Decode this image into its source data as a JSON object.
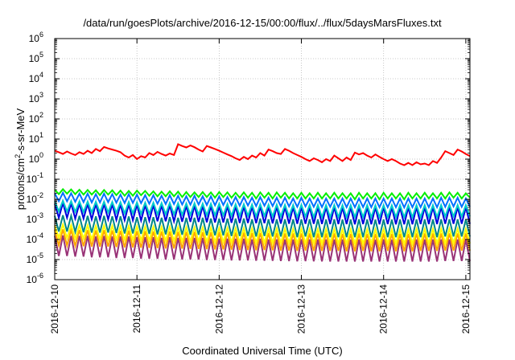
{
  "chart_data": {
    "type": "line",
    "title": "/data/run/goesPlots/archive/2016-12-15/00:00/flux/../flux/5daysMarsFluxes.txt",
    "xlabel": "Coordinated Universal Time (UTC)",
    "ylabel_parts": {
      "base": "protons/cm",
      "sup": "2",
      "rest": "-s-sr-MeV"
    },
    "x_ticks": [
      "2016-12-10",
      "2016-12-11",
      "2016-12-12",
      "2016-12-13",
      "2016-12-14",
      "2016-12-15"
    ],
    "x_range_days": [
      0,
      5.05
    ],
    "y_scale": "log",
    "y_ticks_exp": [
      -6,
      -5,
      -4,
      -3,
      -2,
      -1,
      0,
      1,
      2,
      3,
      4,
      5,
      6
    ],
    "ylim": [
      1e-06,
      1000000.0
    ],
    "grid": true,
    "x": [
      0,
      0.05,
      0.1,
      0.15,
      0.2,
      0.25,
      0.3,
      0.35,
      0.4,
      0.45,
      0.5,
      0.55,
      0.6,
      0.65,
      0.7,
      0.75,
      0.8,
      0.85,
      0.9,
      0.95,
      1.0,
      1.05,
      1.1,
      1.15,
      1.2,
      1.25,
      1.3,
      1.35,
      1.4,
      1.45,
      1.5,
      1.55,
      1.6,
      1.65,
      1.7,
      1.75,
      1.8,
      1.85,
      1.9,
      1.95,
      2.0,
      2.05,
      2.1,
      2.15,
      2.2,
      2.25,
      2.3,
      2.35,
      2.4,
      2.45,
      2.5,
      2.55,
      2.6,
      2.65,
      2.7,
      2.75,
      2.8,
      2.85,
      2.9,
      2.95,
      3.0,
      3.05,
      3.1,
      3.15,
      3.2,
      3.25,
      3.3,
      3.35,
      3.4,
      3.45,
      3.5,
      3.55,
      3.6,
      3.65,
      3.7,
      3.75,
      3.8,
      3.85,
      3.9,
      3.95,
      4.0,
      4.05,
      4.1,
      4.15,
      4.2,
      4.25,
      4.3,
      4.35,
      4.4,
      4.45,
      4.5,
      4.55,
      4.6,
      4.65,
      4.7,
      4.75,
      4.8,
      4.85,
      4.9,
      4.95,
      5.0,
      5.05
    ],
    "series": [
      {
        "color": "#ff0000",
        "values": [
          2.6,
          2.2,
          1.8,
          2.4,
          1.9,
          1.6,
          2.2,
          1.8,
          2.6,
          2.0,
          3.2,
          2.5,
          4.0,
          3.4,
          3.0,
          2.6,
          2.2,
          1.5,
          1.2,
          1.6,
          1.0,
          1.4,
          1.2,
          2.0,
          1.6,
          2.3,
          1.8,
          1.5,
          1.9,
          1.6,
          5.5,
          4.5,
          3.8,
          4.8,
          3.9,
          3.0,
          2.4,
          4.5,
          3.8,
          3.2,
          2.6,
          2.1,
          1.7,
          1.4,
          1.1,
          0.9,
          1.3,
          1.0,
          1.5,
          1.2,
          2.0,
          1.5,
          3.0,
          2.5,
          2.0,
          1.8,
          3.2,
          2.6,
          2.0,
          1.6,
          1.3,
          1.0,
          0.8,
          1.1,
          0.9,
          0.7,
          1.0,
          0.8,
          1.5,
          1.1,
          0.8,
          1.2,
          0.9,
          2.1,
          1.7,
          2.0,
          1.5,
          1.2,
          1.7,
          1.3,
          1.0,
          0.8,
          1.0,
          0.8,
          0.6,
          0.5,
          0.65,
          0.5,
          0.7,
          0.55,
          0.6,
          0.5,
          0.8,
          0.65,
          1.2,
          2.5,
          2.0,
          1.6,
          3.0,
          2.4,
          1.8,
          1.4
        ]
      },
      {
        "color": "#00ee00",
        "values": [
          0.03,
          0.018,
          0.032,
          0.019,
          0.031,
          0.018,
          0.03,
          0.017,
          0.029,
          0.017,
          0.028,
          0.016,
          0.029,
          0.017,
          0.028,
          0.016,
          0.027,
          0.015,
          0.026,
          0.015,
          0.027,
          0.016,
          0.026,
          0.015,
          0.025,
          0.014,
          0.024,
          0.014,
          0.025,
          0.014,
          0.024,
          0.013,
          0.023,
          0.013,
          0.022,
          0.013,
          0.023,
          0.013,
          0.022,
          0.012,
          0.023,
          0.013,
          0.022,
          0.012,
          0.021,
          0.012,
          0.022,
          0.012,
          0.021,
          0.011,
          0.022,
          0.012,
          0.021,
          0.011,
          0.022,
          0.012,
          0.021,
          0.011,
          0.02,
          0.011,
          0.021,
          0.011,
          0.02,
          0.011,
          0.021,
          0.011,
          0.02,
          0.011,
          0.021,
          0.011,
          0.02,
          0.011,
          0.02,
          0.01,
          0.021,
          0.011,
          0.02,
          0.011,
          0.02,
          0.01,
          0.021,
          0.011,
          0.02,
          0.011,
          0.02,
          0.01,
          0.021,
          0.011,
          0.02,
          0.011,
          0.021,
          0.011,
          0.02,
          0.011,
          0.021,
          0.011,
          0.022,
          0.012,
          0.021,
          0.011,
          0.02,
          0.012
        ]
      },
      {
        "color": "#0070ff",
        "values": [
          0.02,
          0.008,
          0.021,
          0.008,
          0.02,
          0.0075,
          0.019,
          0.0072,
          0.019,
          0.007,
          0.018,
          0.007,
          0.019,
          0.0072,
          0.018,
          0.0068,
          0.017,
          0.0065,
          0.018,
          0.0066,
          0.017,
          0.0064,
          0.016,
          0.006,
          0.016,
          0.006,
          0.015,
          0.0058,
          0.016,
          0.0058,
          0.015,
          0.0055,
          0.014,
          0.0054,
          0.015,
          0.0055,
          0.014,
          0.0052,
          0.014,
          0.005,
          0.014,
          0.0052,
          0.013,
          0.005,
          0.013,
          0.0048,
          0.013,
          0.0049,
          0.012,
          0.0046,
          0.013,
          0.0048,
          0.012,
          0.0046,
          0.012,
          0.0045,
          0.012,
          0.0044,
          0.011,
          0.0042,
          0.012,
          0.0044,
          0.011,
          0.0042,
          0.011,
          0.0041,
          0.011,
          0.0042,
          0.011,
          0.0041,
          0.011,
          0.004,
          0.011,
          0.004,
          0.011,
          0.0041,
          0.011,
          0.004,
          0.011,
          0.004,
          0.011,
          0.004,
          0.011,
          0.004,
          0.011,
          0.0039,
          0.011,
          0.004,
          0.011,
          0.004,
          0.011,
          0.004,
          0.011,
          0.004,
          0.012,
          0.0042,
          0.012,
          0.0044,
          0.012,
          0.0042,
          0.011,
          0.0043
        ]
      },
      {
        "color": "#00cccc",
        "values": [
          0.008,
          0.0025,
          0.0085,
          0.0025,
          0.008,
          0.0024,
          0.0078,
          0.0023,
          0.0077,
          0.0022,
          0.0075,
          0.0022,
          0.0076,
          0.0022,
          0.0074,
          0.0021,
          0.0072,
          0.002,
          0.0073,
          0.002,
          0.007,
          0.0019,
          0.0068,
          0.0019,
          0.0067,
          0.0018,
          0.0065,
          0.0018,
          0.0066,
          0.0018,
          0.0064,
          0.0017,
          0.0062,
          0.0017,
          0.0063,
          0.0017,
          0.0061,
          0.0016,
          0.006,
          0.0016,
          0.006,
          0.0016,
          0.0058,
          0.0015,
          0.0057,
          0.0015,
          0.0057,
          0.0015,
          0.0055,
          0.0014,
          0.0056,
          0.0015,
          0.0054,
          0.0014,
          0.0054,
          0.0014,
          0.0053,
          0.0014,
          0.0052,
          0.0013,
          0.0053,
          0.0014,
          0.0052,
          0.0013,
          0.0052,
          0.0013,
          0.0051,
          0.0013,
          0.0052,
          0.0013,
          0.0051,
          0.0013,
          0.0051,
          0.0013,
          0.0051,
          0.0013,
          0.0051,
          0.0013,
          0.005,
          0.0013,
          0.0051,
          0.0013,
          0.005,
          0.0013,
          0.0051,
          0.0013,
          0.005,
          0.0013,
          0.0051,
          0.0013,
          0.0051,
          0.0013,
          0.0051,
          0.0013,
          0.0052,
          0.0014,
          0.0053,
          0.0014,
          0.0052,
          0.0014,
          0.0051,
          0.0014
        ]
      },
      {
        "color": "#0000dd",
        "values": [
          0.006,
          0.0012,
          0.0065,
          0.0012,
          0.0062,
          0.0011,
          0.006,
          0.0011,
          0.0059,
          0.001,
          0.0058,
          0.001,
          0.0059,
          0.001,
          0.0057,
          0.00095,
          0.0055,
          0.0009,
          0.0056,
          0.0009,
          0.0054,
          0.00088,
          0.0052,
          0.00085,
          0.0051,
          0.0008,
          0.005,
          0.0008,
          0.0051,
          0.0008,
          0.0049,
          0.00076,
          0.0048,
          0.00075,
          0.0048,
          0.00075,
          0.0047,
          0.00072,
          0.0046,
          0.0007,
          0.0046,
          0.0007,
          0.0045,
          0.00068,
          0.0044,
          0.00066,
          0.0044,
          0.00066,
          0.0043,
          0.00064,
          0.0043,
          0.00065,
          0.0042,
          0.00063,
          0.0042,
          0.00062,
          0.0041,
          0.00061,
          0.004,
          0.0006,
          0.0041,
          0.0006,
          0.004,
          0.0006,
          0.004,
          0.00059,
          0.004,
          0.00058,
          0.004,
          0.00058,
          0.0039,
          0.00058,
          0.0039,
          0.00057,
          0.004,
          0.00058,
          0.0039,
          0.00057,
          0.0039,
          0.00057,
          0.004,
          0.00058,
          0.0039,
          0.00057,
          0.0039,
          0.00057,
          0.0039,
          0.00057,
          0.004,
          0.00058,
          0.004,
          0.00058,
          0.004,
          0.00058,
          0.0041,
          0.0006,
          0.0041,
          0.0006,
          0.0041,
          0.0006,
          0.004,
          0.0006
        ]
      },
      {
        "color": "#008888",
        "values": [
          0.0015,
          0.00025,
          0.0016,
          0.00025,
          0.0015,
          0.00024,
          0.0015,
          0.00023,
          0.0015,
          0.00022,
          0.0014,
          0.00022,
          0.0015,
          0.00022,
          0.0014,
          0.00021,
          0.0014,
          0.0002,
          0.0014,
          0.0002,
          0.0013,
          0.00019,
          0.0013,
          0.00019,
          0.0013,
          0.00018,
          0.0012,
          0.00018,
          0.0013,
          0.00018,
          0.0012,
          0.00017,
          0.0012,
          0.00017,
          0.0012,
          0.00017,
          0.0012,
          0.00016,
          0.0011,
          0.00016,
          0.0011,
          0.00016,
          0.0011,
          0.00015,
          0.0011,
          0.00015,
          0.0011,
          0.00015,
          0.001,
          0.00014,
          0.0011,
          0.00015,
          0.001,
          0.00014,
          0.001,
          0.00014,
          0.001,
          0.00014,
          0.001,
          0.00013,
          0.001,
          0.00014,
          0.001,
          0.00013,
          0.001,
          0.00013,
          0.00098,
          0.00013,
          0.001,
          0.00013,
          0.00098,
          0.00013,
          0.00098,
          0.00013,
          0.001,
          0.00013,
          0.00098,
          0.00013,
          0.00097,
          0.00013,
          0.00099,
          0.00013,
          0.00097,
          0.00013,
          0.00098,
          0.00013,
          0.00097,
          0.00013,
          0.00099,
          0.00013,
          0.00099,
          0.00013,
          0.00099,
          0.00013,
          0.001,
          0.00014,
          0.001,
          0.00014,
          0.001,
          0.00014,
          0.00098,
          0.00014
        ]
      },
      {
        "color": "#ffff00",
        "values": [
          0.0005,
          0.00012,
          0.00055,
          0.00012,
          0.00052,
          0.00011,
          0.0005,
          0.00011,
          0.0005,
          0.0001,
          0.00048,
          0.0001,
          0.0005,
          0.0001,
          0.00048,
          0.0001,
          0.00046,
          9.5e-05,
          0.00047,
          9.5e-05,
          0.00045,
          9e-05,
          0.00044,
          9e-05,
          0.00043,
          8.5e-05,
          0.00042,
          8.5e-05,
          0.00043,
          8.5e-05,
          0.00041,
          8e-05,
          0.0004,
          8e-05,
          0.0004,
          8e-05,
          0.00039,
          7.6e-05,
          0.00038,
          7.5e-05,
          0.00038,
          7.5e-05,
          0.00037,
          7.2e-05,
          0.00036,
          7e-05,
          0.00036,
          7e-05,
          0.00035,
          6.8e-05,
          0.00036,
          6.9e-05,
          0.00035,
          6.7e-05,
          0.00035,
          6.6e-05,
          0.00034,
          6.5e-05,
          0.00033,
          6.4e-05,
          0.00034,
          6.5e-05,
          0.00033,
          6.4e-05,
          0.00033,
          6.3e-05,
          0.00033,
          6.2e-05,
          0.00033,
          6.2e-05,
          0.00032,
          6.2e-05,
          0.00032,
          6.1e-05,
          0.00033,
          6.2e-05,
          0.00032,
          6.1e-05,
          0.00032,
          6.1e-05,
          0.00033,
          6.2e-05,
          0.00032,
          6.1e-05,
          0.00032,
          6.1e-05,
          0.00032,
          6.1e-05,
          0.00033,
          6.2e-05,
          0.00033,
          6.2e-05,
          0.00033,
          6.2e-05,
          0.00034,
          6.4e-05,
          0.00034,
          6.4e-05,
          0.00034,
          6.4e-05,
          0.00033,
          6.4e-05
        ]
      },
      {
        "color": "#ffa500",
        "values": [
          0.0003,
          5e-05,
          0.00032,
          5e-05,
          0.0003,
          4.8e-05,
          0.0003,
          4.6e-05,
          0.00029,
          4.5e-05,
          0.00028,
          4.4e-05,
          0.00029,
          4.4e-05,
          0.00028,
          4.2e-05,
          0.00027,
          4e-05,
          0.00028,
          4e-05,
          0.00026,
          3.9e-05,
          0.00026,
          3.8e-05,
          0.00025,
          3.7e-05,
          0.00025,
          3.6e-05,
          0.00025,
          3.6e-05,
          0.00024,
          3.5e-05,
          0.00024,
          3.4e-05,
          0.00024,
          3.4e-05,
          0.00023,
          3.3e-05,
          0.00023,
          3.2e-05,
          0.00023,
          3.2e-05,
          0.00022,
          3.1e-05,
          0.00022,
          3e-05,
          0.00022,
          3e-05,
          0.00021,
          2.9e-05,
          0.00021,
          3e-05,
          0.00021,
          2.9e-05,
          0.00021,
          2.8e-05,
          0.0002,
          2.8e-05,
          0.0002,
          2.7e-05,
          0.0002,
          2.8e-05,
          0.0002,
          2.7e-05,
          0.0002,
          2.7e-05,
          0.0002,
          2.7e-05,
          0.0002,
          2.7e-05,
          0.00019,
          2.6e-05,
          0.00019,
          2.6e-05,
          0.0002,
          2.7e-05,
          0.00019,
          2.6e-05,
          0.00019,
          2.6e-05,
          0.0002,
          2.7e-05,
          0.00019,
          2.6e-05,
          0.00019,
          2.6e-05,
          0.00019,
          2.6e-05,
          0.0002,
          2.7e-05,
          0.0002,
          2.7e-05,
          0.0002,
          2.7e-05,
          0.0002,
          2.8e-05,
          0.0002,
          2.8e-05,
          0.0002,
          2.8e-05,
          0.0002,
          2.8e-05
        ]
      },
      {
        "color": "#993377",
        "values": [
          0.00015,
          1.5e-05,
          0.00016,
          1.5e-05,
          0.00015,
          1.4e-05,
          0.00015,
          1.4e-05,
          0.00015,
          1.3e-05,
          0.00014,
          1.3e-05,
          0.00015,
          1.3e-05,
          0.00014,
          1.2e-05,
          0.00014,
          1.2e-05,
          0.00014,
          1.2e-05,
          0.00013,
          1.1e-05,
          0.00013,
          1.1e-05,
          0.00013,
          1.1e-05,
          0.00012,
          1e-05,
          0.00013,
          1e-05,
          0.00012,
          1e-05,
          0.00012,
          1e-05,
          0.00012,
          1e-05,
          0.00012,
          9.5e-06,
          0.00011,
          9.5e-06,
          0.00011,
          9.5e-06,
          0.00011,
          9e-06,
          0.00011,
          9e-06,
          0.00011,
          9e-06,
          0.0001,
          8.8e-06,
          0.00011,
          8.8e-06,
          0.0001,
          8.6e-06,
          0.0001,
          8.5e-06,
          0.0001,
          8.4e-06,
          0.0001,
          8.2e-06,
          0.0001,
          8.3e-06,
          0.0001,
          8.2e-06,
          0.0001,
          8.1e-06,
          0.0001,
          8e-06,
          0.0001,
          8e-06,
          9.8e-05,
          8e-06,
          9.8e-05,
          8e-06,
          0.0001,
          8e-06,
          9.8e-05,
          8e-06,
          9.7e-05,
          8e-06,
          9.9e-05,
          8e-06,
          9.7e-05,
          8e-06,
          9.8e-05,
          8e-06,
          9.7e-05,
          8e-06,
          9.9e-05,
          8e-06,
          9.9e-05,
          8e-06,
          9.9e-05,
          8e-06,
          0.0001,
          8.5e-06,
          0.0001,
          8.5e-06,
          0.0001,
          8.5e-06,
          9.8e-05,
          8.5e-06
        ]
      }
    ]
  }
}
